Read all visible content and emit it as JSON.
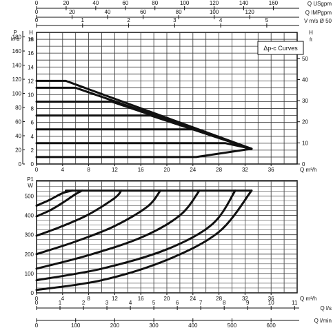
{
  "chart_data": [
    {
      "type": "line",
      "title": "",
      "annotation": "Δp-c Curves",
      "xlabel": "Q m³/h",
      "ylabel_left_kpa": "P kPa",
      "ylabel_left_m": "H m",
      "ylabel_right": "H ft",
      "xlim": [
        0,
        40
      ],
      "ylim": [
        0,
        19
      ],
      "x_ticks": [
        0,
        4,
        8,
        12,
        16,
        20,
        24,
        28,
        32,
        36
      ],
      "x_tick_labels": [
        "0",
        "4",
        "8",
        "12",
        "16",
        "20",
        "24",
        "28",
        "32",
        "36"
      ],
      "y_ticks_m": [
        0,
        2,
        4,
        6,
        8,
        10,
        12,
        14,
        16,
        18
      ],
      "y_ticks_m_labels": [
        "0",
        "2",
        "4",
        "6",
        "8",
        "10",
        "12",
        "14",
        "16",
        "18"
      ],
      "y_ticks_kpa": [
        0,
        20,
        40,
        60,
        80,
        100,
        120,
        140,
        160,
        180
      ],
      "y_ticks_kpa_labels": [
        "0",
        "20",
        "40",
        "60",
        "80",
        "100",
        "120",
        "140",
        "160",
        "180"
      ],
      "y_ticks_ft": [
        0,
        10,
        20,
        30,
        40,
        50
      ],
      "y_ticks_ft_labels": [
        "0",
        "10",
        "20",
        "30",
        "40",
        "50"
      ],
      "top_axes": [
        {
          "unit": "Q USgpm",
          "range": [
            0,
            160
          ],
          "ticks": [
            0,
            20,
            40,
            60,
            80,
            100,
            120,
            140,
            160
          ],
          "tick_labels": [
            "0",
            "20",
            "40",
            "60",
            "80",
            "100",
            "120",
            "140",
            "160"
          ]
        },
        {
          "unit": "Q IMPgpm",
          "range": [
            0,
            120
          ],
          "ticks": [
            0,
            20,
            40,
            60,
            80,
            100,
            120
          ],
          "tick_labels": [
            "0",
            "20",
            "40",
            "60",
            "80",
            "100",
            "120"
          ]
        },
        {
          "unit": "V m/s Ø 50",
          "range": [
            0,
            5
          ],
          "ticks": [
            0,
            1,
            2,
            3,
            4,
            5
          ],
          "tick_labels": [
            "0",
            "1",
            "2",
            "3",
            "4",
            "5"
          ]
        }
      ],
      "grid": true,
      "series": [
        {
          "x": [
            0,
            4.5,
            33
          ],
          "y": [
            12,
            12,
            2.2
          ]
        },
        {
          "x": [
            0,
            6,
            33
          ],
          "y": [
            11,
            11,
            2.2
          ]
        },
        {
          "x": [
            0,
            11.5,
            33
          ],
          "y": [
            9,
            9,
            2.2
          ]
        },
        {
          "x": [
            0,
            17.5,
            33
          ],
          "y": [
            7,
            7,
            2.2
          ]
        },
        {
          "x": [
            0,
            24,
            33
          ],
          "y": [
            5,
            5,
            2.2
          ]
        },
        {
          "x": [
            0,
            29,
            33
          ],
          "y": [
            3,
            3,
            2.2
          ]
        },
        {
          "x": [
            0,
            24.5,
            33
          ],
          "y": [
            1,
            1,
            2.2
          ]
        }
      ]
    },
    {
      "type": "line",
      "title": "",
      "xlabel": "Q m³/h",
      "ylabel": "P1 W",
      "xlim": [
        0,
        40
      ],
      "ylim": [
        0,
        580
      ],
      "x_ticks": [
        0,
        4,
        8,
        12,
        16,
        20,
        24,
        28,
        32,
        36
      ],
      "x_tick_labels": [
        "0",
        "4",
        "8",
        "12",
        "16",
        "20",
        "24",
        "28",
        "32",
        "36"
      ],
      "y_ticks": [
        0,
        100,
        200,
        300,
        400,
        500
      ],
      "y_tick_labels": [
        "0",
        "100",
        "200",
        "300",
        "400",
        "500"
      ],
      "bottom_axes": [
        {
          "unit": "Q l/s",
          "range": [
            0,
            11
          ],
          "ticks": [
            0,
            1,
            2,
            3,
            4,
            5,
            6,
            7,
            8,
            9,
            10,
            11
          ],
          "tick_labels": [
            "0",
            "1",
            "2",
            "3",
            "4",
            "5",
            "6",
            "7",
            "8",
            "9",
            "10",
            "11"
          ]
        },
        {
          "unit": "Q l/min",
          "range": [
            0,
            666.7
          ],
          "ticks": [
            0,
            100,
            200,
            300,
            400,
            500,
            600
          ],
          "tick_labels": [
            "0",
            "100",
            "200",
            "300",
            "400",
            "500",
            "600"
          ]
        }
      ],
      "grid": true,
      "series": [
        {
          "x": [
            0,
            2,
            4,
            5.5
          ],
          "y": [
            450,
            480,
            515,
            528
          ]
        },
        {
          "x": [
            0,
            2,
            4,
            6,
            7
          ],
          "y": [
            395,
            425,
            465,
            510,
            528
          ]
        },
        {
          "x": [
            0,
            4,
            8,
            12,
            13
          ],
          "y": [
            295,
            345,
            405,
            490,
            528
          ]
        },
        {
          "x": [
            0,
            6,
            12,
            17,
            19
          ],
          "y": [
            200,
            265,
            345,
            445,
            528
          ]
        },
        {
          "x": [
            0,
            8,
            16,
            22,
            25
          ],
          "y": [
            125,
            195,
            285,
            400,
            528
          ]
        },
        {
          "x": [
            0,
            10,
            20,
            27,
            30.5
          ],
          "y": [
            65,
            125,
            225,
            355,
            528
          ]
        },
        {
          "x": [
            0,
            10,
            20,
            28,
            33
          ],
          "y": [
            15,
            65,
            170,
            315,
            528
          ]
        },
        {
          "x": [
            4.5,
            33
          ],
          "y": [
            528,
            528
          ]
        }
      ]
    }
  ]
}
